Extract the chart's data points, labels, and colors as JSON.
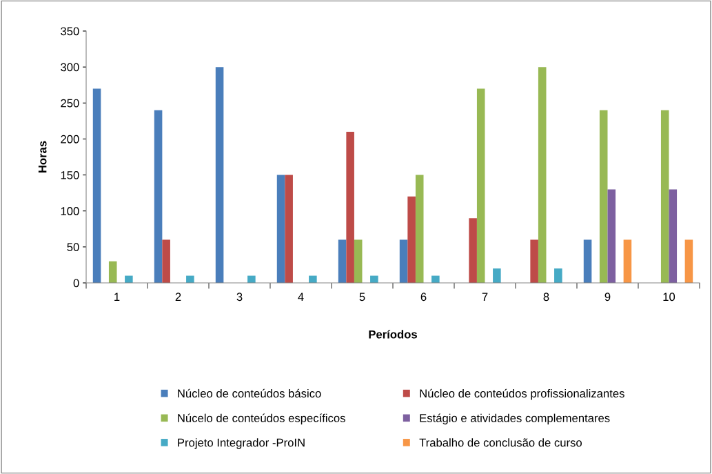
{
  "chart_data": {
    "type": "bar",
    "xlabel": "Períodos",
    "ylabel": "Horas",
    "categories": [
      "1",
      "2",
      "3",
      "4",
      "5",
      "6",
      "7",
      "8",
      "9",
      "10"
    ],
    "series": [
      {
        "name": "Núcleo de conteúdos básico",
        "color": "#4a7ebb",
        "values": [
          270,
          240,
          300,
          150,
          60,
          60,
          0,
          0,
          60,
          0
        ]
      },
      {
        "name": "Núcleo de conteúdos profissionalizantes",
        "color": "#be4b48",
        "values": [
          0,
          60,
          0,
          150,
          210,
          120,
          90,
          60,
          0,
          0
        ]
      },
      {
        "name": "Núcelo de conteúdos específicos",
        "color": "#98b954",
        "values": [
          30,
          0,
          0,
          0,
          60,
          150,
          270,
          300,
          240,
          240
        ]
      },
      {
        "name": "Estágio e atividades complementares",
        "color": "#7d60a0",
        "values": [
          0,
          0,
          0,
          0,
          0,
          0,
          0,
          0,
          130,
          130
        ]
      },
      {
        "name": "Projeto Integrador -ProIN",
        "color": "#46aac5",
        "values": [
          10,
          10,
          10,
          10,
          10,
          10,
          20,
          20,
          0,
          0
        ]
      },
      {
        "name": "Trabalho de conclusão de curso",
        "color": "#f79646",
        "values": [
          0,
          0,
          0,
          0,
          0,
          0,
          0,
          0,
          60,
          60
        ]
      }
    ],
    "ylim": [
      0,
      350
    ],
    "yticks": [
      0,
      50,
      100,
      150,
      200,
      250,
      300,
      350
    ],
    "grid": false,
    "legend": "bottom"
  }
}
